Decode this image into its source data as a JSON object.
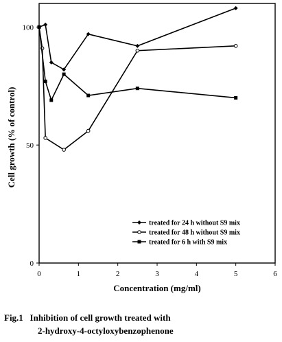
{
  "chart_data": {
    "type": "line",
    "xlabel": "Concentration (mg/ml)",
    "ylabel": "Cell growth (% of control)",
    "xlim": [
      0,
      6
    ],
    "ylim": [
      0,
      110
    ],
    "x_ticks": [
      0,
      1,
      2,
      3,
      4,
      5,
      6
    ],
    "y_ticks": [
      0,
      50,
      100
    ],
    "legend_position": "bottom-right",
    "series": [
      {
        "name": "treated for 24 h without S9 mix",
        "marker": "diamond",
        "x": [
          0,
          0.16,
          0.31,
          0.63,
          1.25,
          2.5,
          5
        ],
        "y": [
          100,
          101,
          85,
          82,
          97,
          92,
          108
        ]
      },
      {
        "name": "treated for 48 h without S9 mix",
        "marker": "circle-open",
        "x": [
          0,
          0.08,
          0.16,
          0.63,
          1.25,
          2.5,
          5
        ],
        "y": [
          100,
          91,
          53,
          48,
          56,
          90,
          92
        ]
      },
      {
        "name": "treated for 6 h with S9 mix",
        "marker": "square",
        "x": [
          0,
          0.16,
          0.31,
          0.63,
          1.25,
          2.5,
          5
        ],
        "y": [
          100,
          77,
          69,
          80,
          71,
          74,
          70
        ]
      }
    ]
  },
  "caption": {
    "line1": "Fig.1   Inhibition of cell growth treated with",
    "line2": "2-hydroxy-4-octyloxybenzophenone"
  }
}
